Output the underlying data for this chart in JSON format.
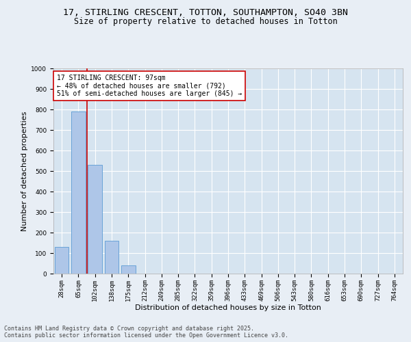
{
  "title_line1": "17, STIRLING CRESCENT, TOTTON, SOUTHAMPTON, SO40 3BN",
  "title_line2": "Size of property relative to detached houses in Totton",
  "xlabel": "Distribution of detached houses by size in Totton",
  "ylabel": "Number of detached properties",
  "bar_color": "#aec6e8",
  "bar_edge_color": "#5b9bd5",
  "vline_color": "#cc0000",
  "annotation_text": "17 STIRLING CRESCENT: 97sqm\n← 48% of detached houses are smaller (792)\n51% of semi-detached houses are larger (845) →",
  "annotation_box_color": "#ffffff",
  "annotation_box_edge": "#cc0000",
  "background_color": "#e8eef5",
  "plot_bg_color": "#d6e4f0",
  "categories": [
    "28sqm",
    "65sqm",
    "102sqm",
    "138sqm",
    "175sqm",
    "212sqm",
    "249sqm",
    "285sqm",
    "322sqm",
    "359sqm",
    "396sqm",
    "433sqm",
    "469sqm",
    "506sqm",
    "543sqm",
    "580sqm",
    "616sqm",
    "653sqm",
    "690sqm",
    "727sqm",
    "764sqm"
  ],
  "values": [
    130,
    790,
    530,
    160,
    40,
    0,
    0,
    0,
    0,
    0,
    0,
    0,
    0,
    0,
    0,
    0,
    0,
    0,
    0,
    0,
    0
  ],
  "ylim": [
    0,
    1000
  ],
  "yticks": [
    0,
    100,
    200,
    300,
    400,
    500,
    600,
    700,
    800,
    900,
    1000
  ],
  "footnote": "Contains HM Land Registry data © Crown copyright and database right 2025.\nContains public sector information licensed under the Open Government Licence v3.0.",
  "title_fontsize": 9.5,
  "subtitle_fontsize": 8.5,
  "tick_fontsize": 6.5,
  "label_fontsize": 8,
  "annotation_fontsize": 7,
  "footnote_fontsize": 6
}
